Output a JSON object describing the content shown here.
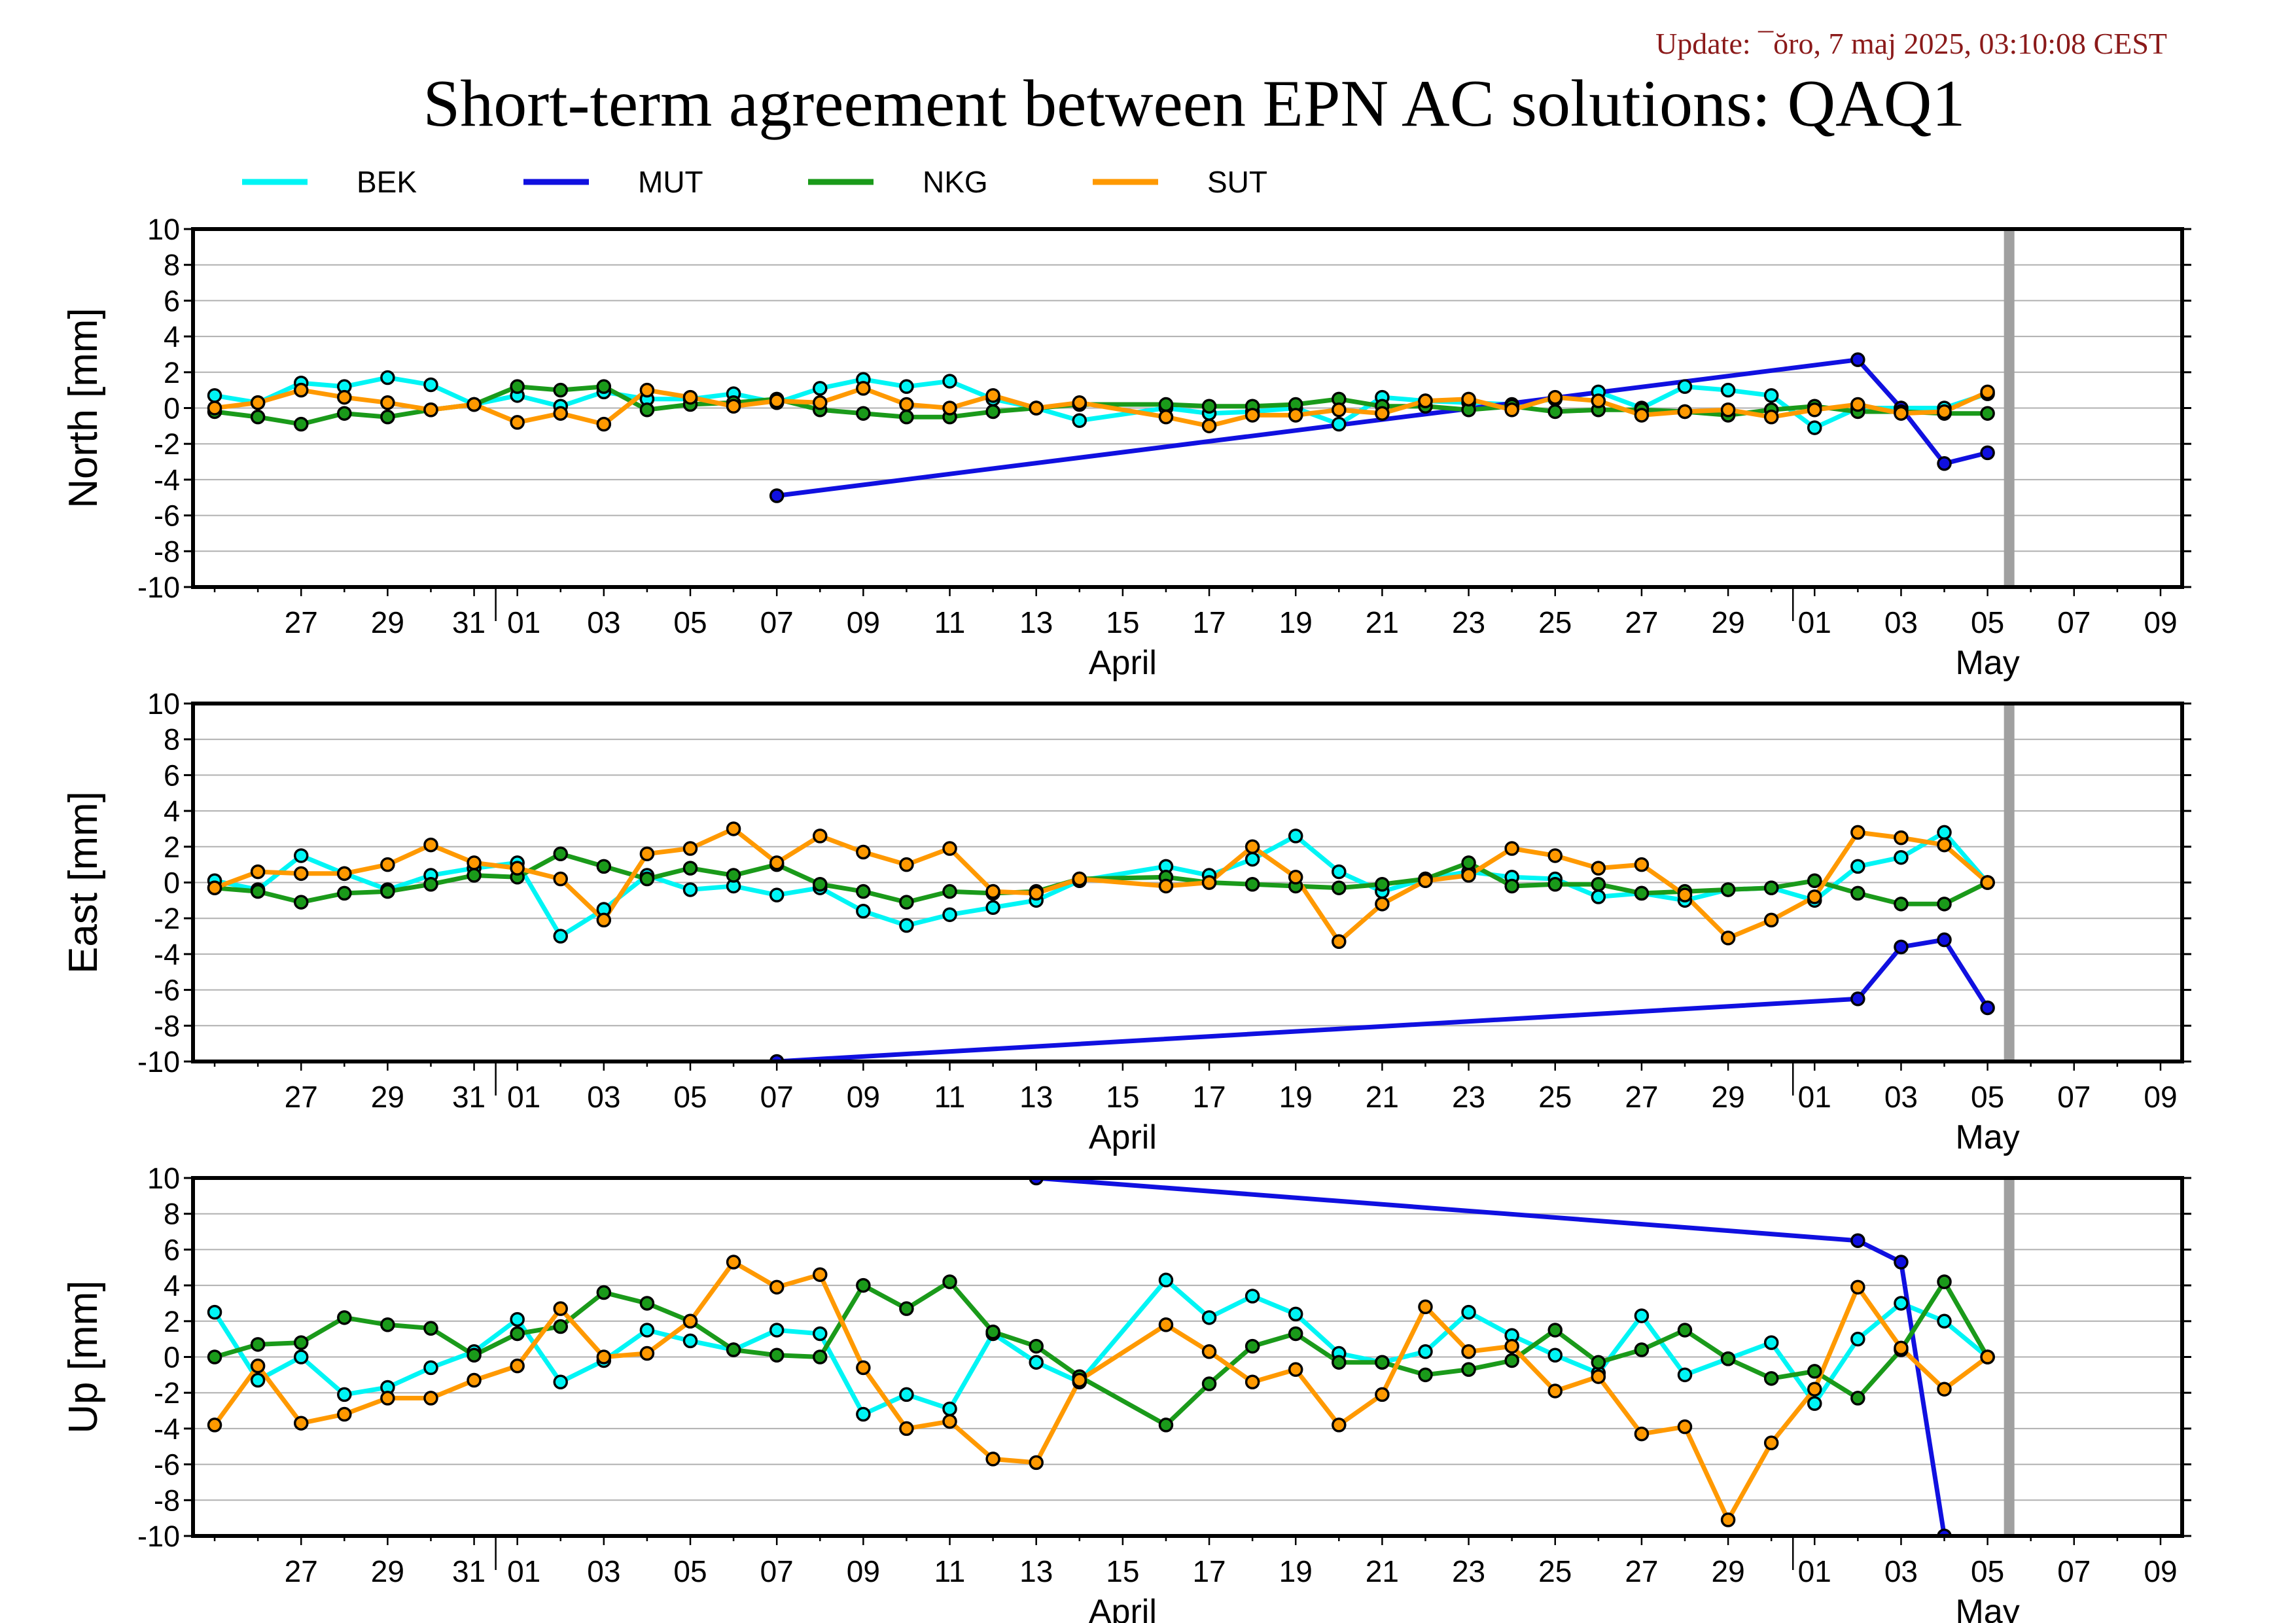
{
  "update_text": "Update: ¯ŏro, 7 maj 2025, 03:10:08 CEST",
  "title": "Short-term agreement between EPN AC solutions: QAQ1",
  "colors": {
    "BEK": "#00f5f5",
    "MUT": "#1010e0",
    "NKG": "#1a9a1a",
    "SUT": "#ff9900",
    "update": "#8b1a1a",
    "grid": "#b0b0b0",
    "today_bar": "#a0a0a0"
  },
  "legend": [
    {
      "key": "BEK",
      "label": "BEK"
    },
    {
      "key": "MUT",
      "label": "MUT"
    },
    {
      "key": "NKG",
      "label": "NKG"
    },
    {
      "key": "SUT",
      "label": "SUT"
    }
  ],
  "x_axis": {
    "start_day": -6.5,
    "end_day": 39.5,
    "tick_labels": [
      {
        "day": -4,
        "text": "27"
      },
      {
        "day": -2,
        "text": "29"
      },
      {
        "day": 0,
        "text": "31"
      },
      {
        "day": 1,
        "text": "01"
      },
      {
        "day": 3,
        "text": "03"
      },
      {
        "day": 5,
        "text": "05"
      },
      {
        "day": 7,
        "text": "07"
      },
      {
        "day": 9,
        "text": "09"
      },
      {
        "day": 11,
        "text": "11"
      },
      {
        "day": 13,
        "text": "13"
      },
      {
        "day": 15,
        "text": "15"
      },
      {
        "day": 17,
        "text": "17"
      },
      {
        "day": 19,
        "text": "19"
      },
      {
        "day": 21,
        "text": "21"
      },
      {
        "day": 23,
        "text": "23"
      },
      {
        "day": 25,
        "text": "25"
      },
      {
        "day": 27,
        "text": "27"
      },
      {
        "day": 29,
        "text": "29"
      },
      {
        "day": 31,
        "text": "01"
      },
      {
        "day": 33,
        "text": "03"
      },
      {
        "day": 35,
        "text": "05"
      },
      {
        "day": 37,
        "text": "07"
      },
      {
        "day": 39,
        "text": "09"
      }
    ],
    "month_labels": [
      {
        "day": 15,
        "text": "April"
      },
      {
        "day": 35,
        "text": "May"
      }
    ],
    "month_boundaries": [
      0.5,
      30.5
    ],
    "today_day": 35.5
  },
  "chart_data": [
    {
      "type": "line",
      "ylabel": "North [mm]",
      "ylim": [
        -10,
        10
      ],
      "yticks": [
        -10,
        -8,
        -6,
        -4,
        -2,
        0,
        2,
        4,
        6,
        8,
        10
      ],
      "series": [
        {
          "name": "BEK",
          "x": [
            -6,
            -5,
            -4,
            -3,
            -2,
            -1,
            0,
            1,
            2,
            3,
            4,
            5,
            6,
            7,
            8,
            9,
            10,
            11,
            12,
            13,
            14,
            16,
            17,
            18,
            19,
            20,
            21,
            22,
            23,
            24,
            25,
            26,
            27,
            28,
            29,
            30,
            31,
            32,
            33,
            34,
            35
          ],
          "y": [
            0.7,
            0.3,
            1.4,
            1.2,
            1.7,
            1.3,
            0.2,
            0.7,
            0.1,
            0.9,
            0.5,
            0.5,
            0.8,
            0.3,
            1.1,
            1.6,
            1.2,
            1.5,
            0.5,
            0.0,
            -0.7,
            0.0,
            -0.3,
            -0.2,
            0.0,
            -0.9,
            0.6,
            0.4,
            0.3,
            0.2,
            0.5,
            0.9,
            0.0,
            1.2,
            1.0,
            0.7,
            -1.1,
            0.0,
            0.0,
            0.0,
            0.8
          ]
        },
        {
          "name": "MUT",
          "x": [
            7,
            32,
            33,
            34,
            35
          ],
          "y": [
            -4.9,
            2.7,
            0.0,
            -3.1,
            -2.5
          ]
        },
        {
          "name": "NKG",
          "x": [
            -6,
            -5,
            -4,
            -3,
            -2,
            -1,
            0,
            1,
            2,
            3,
            4,
            5,
            6,
            7,
            8,
            9,
            10,
            11,
            12,
            13,
            14,
            16,
            17,
            18,
            19,
            20,
            21,
            22,
            23,
            24,
            25,
            26,
            27,
            28,
            29,
            30,
            31,
            32,
            33,
            34,
            35
          ],
          "y": [
            -0.2,
            -0.5,
            -0.9,
            -0.3,
            -0.5,
            -0.1,
            0.2,
            1.2,
            1.0,
            1.2,
            -0.1,
            0.2,
            0.3,
            0.5,
            -0.1,
            -0.3,
            -0.5,
            -0.5,
            -0.2,
            0.0,
            0.2,
            0.2,
            0.1,
            0.1,
            0.2,
            0.5,
            0.1,
            0.1,
            -0.1,
            0.1,
            -0.2,
            -0.1,
            -0.1,
            -0.2,
            -0.4,
            -0.1,
            0.1,
            -0.2,
            -0.2,
            -0.3,
            -0.3
          ]
        },
        {
          "name": "SUT",
          "x": [
            -6,
            -5,
            -4,
            -3,
            -2,
            -1,
            0,
            1,
            2,
            3,
            4,
            5,
            6,
            7,
            8,
            9,
            10,
            11,
            12,
            13,
            14,
            16,
            17,
            18,
            19,
            20,
            21,
            22,
            23,
            24,
            25,
            26,
            27,
            28,
            29,
            30,
            31,
            32,
            33,
            34,
            35
          ],
          "y": [
            0.0,
            0.3,
            1.0,
            0.6,
            0.3,
            -0.1,
            0.2,
            -0.8,
            -0.3,
            -0.9,
            1.0,
            0.6,
            0.1,
            0.4,
            0.3,
            1.1,
            0.2,
            0.0,
            0.7,
            0.0,
            0.3,
            -0.5,
            -1.0,
            -0.4,
            -0.4,
            -0.1,
            -0.3,
            0.4,
            0.5,
            -0.1,
            0.6,
            0.4,
            -0.4,
            -0.2,
            -0.1,
            -0.5,
            -0.1,
            0.2,
            -0.3,
            -0.2,
            0.9
          ]
        }
      ]
    },
    {
      "type": "line",
      "ylabel": "East [mm]",
      "ylim": [
        -10,
        10
      ],
      "yticks": [
        -10,
        -8,
        -6,
        -4,
        -2,
        0,
        2,
        4,
        6,
        8,
        10
      ],
      "series": [
        {
          "name": "BEK",
          "x": [
            -6,
            -5,
            -4,
            -3,
            -2,
            -1,
            0,
            1,
            2,
            3,
            4,
            5,
            6,
            7,
            8,
            9,
            10,
            11,
            12,
            13,
            14,
            16,
            17,
            18,
            19,
            20,
            21,
            22,
            23,
            24,
            25,
            26,
            27,
            28,
            29,
            30,
            31,
            32,
            33,
            34,
            35
          ],
          "y": [
            0.1,
            -0.4,
            1.5,
            0.5,
            -0.4,
            0.4,
            0.8,
            1.1,
            -3.0,
            -1.5,
            0.4,
            -0.4,
            -0.2,
            -0.7,
            -0.3,
            -1.6,
            -2.4,
            -1.8,
            -1.4,
            -1.0,
            0.1,
            0.9,
            0.4,
            1.3,
            2.6,
            0.6,
            -0.5,
            0.2,
            0.6,
            0.3,
            0.2,
            -0.8,
            -0.6,
            -1.0,
            -0.4,
            -0.3,
            -1.0,
            0.9,
            1.4,
            2.8,
            0.0
          ]
        },
        {
          "name": "MUT",
          "x": [
            7,
            32,
            33,
            34,
            35
          ],
          "y": [
            -10.0,
            -6.5,
            -3.6,
            -3.2,
            -7.0
          ]
        },
        {
          "name": "NKG",
          "x": [
            -6,
            -5,
            -4,
            -3,
            -2,
            -1,
            0,
            1,
            2,
            3,
            4,
            5,
            6,
            7,
            8,
            9,
            10,
            11,
            12,
            13,
            14,
            16,
            17,
            18,
            19,
            20,
            21,
            22,
            23,
            24,
            25,
            26,
            27,
            28,
            29,
            30,
            31,
            32,
            33,
            34,
            35
          ],
          "y": [
            -0.3,
            -0.5,
            -1.1,
            -0.6,
            -0.5,
            -0.1,
            0.4,
            0.3,
            1.6,
            0.9,
            0.2,
            0.8,
            0.4,
            1.0,
            -0.1,
            -0.5,
            -1.1,
            -0.5,
            -0.6,
            -0.5,
            0.2,
            0.3,
            0.0,
            -0.1,
            -0.2,
            -0.3,
            -0.1,
            0.2,
            1.1,
            -0.2,
            -0.1,
            -0.1,
            -0.6,
            -0.5,
            -0.4,
            -0.3,
            0.1,
            -0.6,
            -1.2,
            -1.2,
            0.0
          ]
        },
        {
          "name": "SUT",
          "x": [
            -6,
            -5,
            -4,
            -3,
            -2,
            -1,
            0,
            1,
            2,
            3,
            4,
            5,
            6,
            7,
            8,
            9,
            10,
            11,
            12,
            13,
            14,
            16,
            17,
            18,
            19,
            20,
            21,
            22,
            23,
            24,
            25,
            26,
            27,
            28,
            29,
            30,
            31,
            32,
            33,
            34,
            35
          ],
          "y": [
            -0.3,
            0.6,
            0.5,
            0.5,
            1.0,
            2.1,
            1.1,
            0.8,
            0.2,
            -2.1,
            1.6,
            1.9,
            3.0,
            1.1,
            2.6,
            1.7,
            1.0,
            1.9,
            -0.5,
            -0.6,
            0.2,
            -0.2,
            0.0,
            2.0,
            0.3,
            -3.3,
            -1.2,
            0.1,
            0.4,
            1.9,
            1.5,
            0.8,
            1.0,
            -0.7,
            -3.1,
            -2.1,
            -0.8,
            2.8,
            2.5,
            2.1,
            0.0
          ]
        }
      ]
    },
    {
      "type": "line",
      "ylabel": "Up [mm]",
      "ylim": [
        -10,
        10
      ],
      "yticks": [
        -10,
        -8,
        -6,
        -4,
        -2,
        0,
        2,
        4,
        6,
        8,
        10
      ],
      "series": [
        {
          "name": "BEK",
          "x": [
            -6,
            -5,
            -4,
            -3,
            -2,
            -1,
            0,
            1,
            2,
            3,
            4,
            5,
            6,
            7,
            8,
            9,
            10,
            11,
            12,
            13,
            14,
            16,
            17,
            18,
            19,
            20,
            21,
            22,
            23,
            24,
            25,
            26,
            27,
            28,
            29,
            30,
            31,
            32,
            33,
            34,
            35
          ],
          "y": [
            2.5,
            -1.3,
            0.0,
            -2.1,
            -1.7,
            -0.6,
            0.3,
            2.1,
            -1.4,
            -0.2,
            1.5,
            0.9,
            0.4,
            1.5,
            1.3,
            -3.2,
            -2.1,
            -2.9,
            1.3,
            -0.3,
            -1.4,
            4.3,
            2.2,
            3.4,
            2.4,
            0.2,
            -0.3,
            0.3,
            2.5,
            1.2,
            0.1,
            -0.9,
            2.3,
            -1.0,
            -0.1,
            0.8,
            -2.6,
            1.0,
            3.0,
            2.0,
            0.0
          ]
        },
        {
          "name": "MUT",
          "x": [
            13,
            32,
            33,
            34
          ],
          "y": [
            10.0,
            6.5,
            5.3,
            -10.0
          ]
        },
        {
          "name": "NKG",
          "x": [
            -6,
            -5,
            -4,
            -3,
            -2,
            -1,
            0,
            1,
            2,
            3,
            4,
            5,
            6,
            7,
            8,
            9,
            10,
            11,
            12,
            13,
            14,
            16,
            17,
            18,
            19,
            20,
            21,
            22,
            23,
            24,
            25,
            26,
            27,
            28,
            29,
            30,
            31,
            32,
            33,
            34,
            35
          ],
          "y": [
            0.0,
            0.7,
            0.8,
            2.2,
            1.8,
            1.6,
            0.1,
            1.3,
            1.7,
            3.6,
            3.0,
            2.0,
            0.4,
            0.1,
            0.0,
            4.0,
            2.7,
            4.2,
            1.4,
            0.6,
            -1.1,
            -3.8,
            -1.5,
            0.6,
            1.3,
            -0.3,
            -0.3,
            -1.0,
            -0.7,
            -0.2,
            1.5,
            -0.3,
            0.4,
            1.5,
            -0.1,
            -1.2,
            -0.8,
            -2.3,
            0.4,
            4.2,
            0.0
          ]
        },
        {
          "name": "SUT",
          "x": [
            -6,
            -5,
            -4,
            -3,
            -2,
            -1,
            0,
            1,
            2,
            3,
            4,
            5,
            6,
            7,
            8,
            9,
            10,
            11,
            12,
            13,
            14,
            16,
            17,
            18,
            19,
            20,
            21,
            22,
            23,
            24,
            25,
            26,
            27,
            28,
            29,
            30,
            31,
            32,
            33,
            34,
            35
          ],
          "y": [
            -3.8,
            -0.5,
            -3.7,
            -3.2,
            -2.3,
            -2.3,
            -1.3,
            -0.5,
            2.7,
            0.0,
            0.2,
            2.0,
            5.3,
            3.9,
            4.6,
            -0.6,
            -4.0,
            -3.6,
            -5.7,
            -5.9,
            -1.3,
            1.8,
            0.3,
            -1.4,
            -0.7,
            -3.8,
            -2.1,
            2.8,
            0.3,
            0.6,
            -1.9,
            -1.1,
            -4.3,
            -3.9,
            -9.1,
            -4.8,
            -1.8,
            3.9,
            0.5,
            -1.8,
            0.0
          ]
        }
      ]
    }
  ]
}
